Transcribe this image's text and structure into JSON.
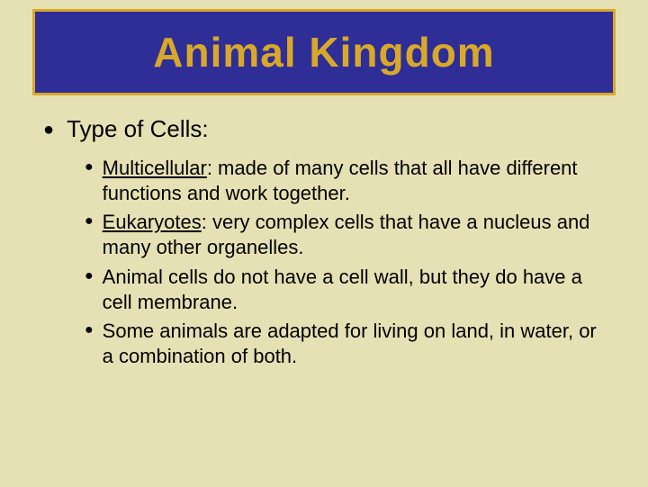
{
  "title": {
    "text": "Animal Kingdom",
    "background_color": "#2e2e96",
    "border_color": "#d9a82a",
    "border_width": 3,
    "text_color": "#d9a82a",
    "font_size": 46
  },
  "main": {
    "label": "Type of Cells:",
    "font_size": 26,
    "bullet_char": "●"
  },
  "sub": {
    "font_size": 22,
    "bullet_char": "●",
    "items": [
      {
        "term": "Multicellular",
        "rest": ": made of many cells that all have different functions and work together."
      },
      {
        "term": "Eukaryotes",
        "rest": ": very complex cells that have a nucleus and many other organelles."
      },
      {
        "term": "",
        "rest": "Animal cells do not have a cell wall, but they do have a cell membrane."
      },
      {
        "term": "",
        "rest": "Some animals are adapted for living on land, in water, or a combination of both."
      }
    ]
  },
  "background_color": "#e6e1b4"
}
